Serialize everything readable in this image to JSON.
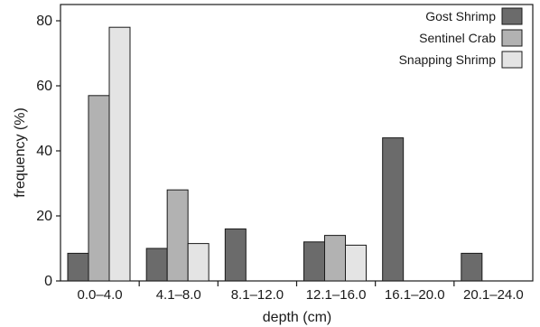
{
  "chart_data": {
    "type": "bar",
    "xlabel": "depth (cm)",
    "ylabel": "frequency (%)",
    "ylim": [
      0,
      85
    ],
    "yticks": [
      0,
      20,
      40,
      60,
      80
    ],
    "grid": false,
    "legend_position": "top-right",
    "categories": [
      "0.0–4.0",
      "4.1–8.0",
      "8.1–12.0",
      "12.1–16.0",
      "16.1–20.0",
      "20.1–24.0"
    ],
    "series": [
      {
        "name": "Gost Shrimp",
        "color": "#6b6b6b",
        "values": [
          8.5,
          10,
          16,
          12,
          44,
          8.5
        ]
      },
      {
        "name": "Sentinel Crab",
        "color": "#b2b2b2",
        "values": [
          57,
          28,
          0,
          14,
          0,
          0
        ]
      },
      {
        "name": "Snapping Shrimp",
        "color": "#e4e4e4",
        "values": [
          78,
          11.5,
          0,
          11,
          0,
          0
        ]
      }
    ]
  }
}
